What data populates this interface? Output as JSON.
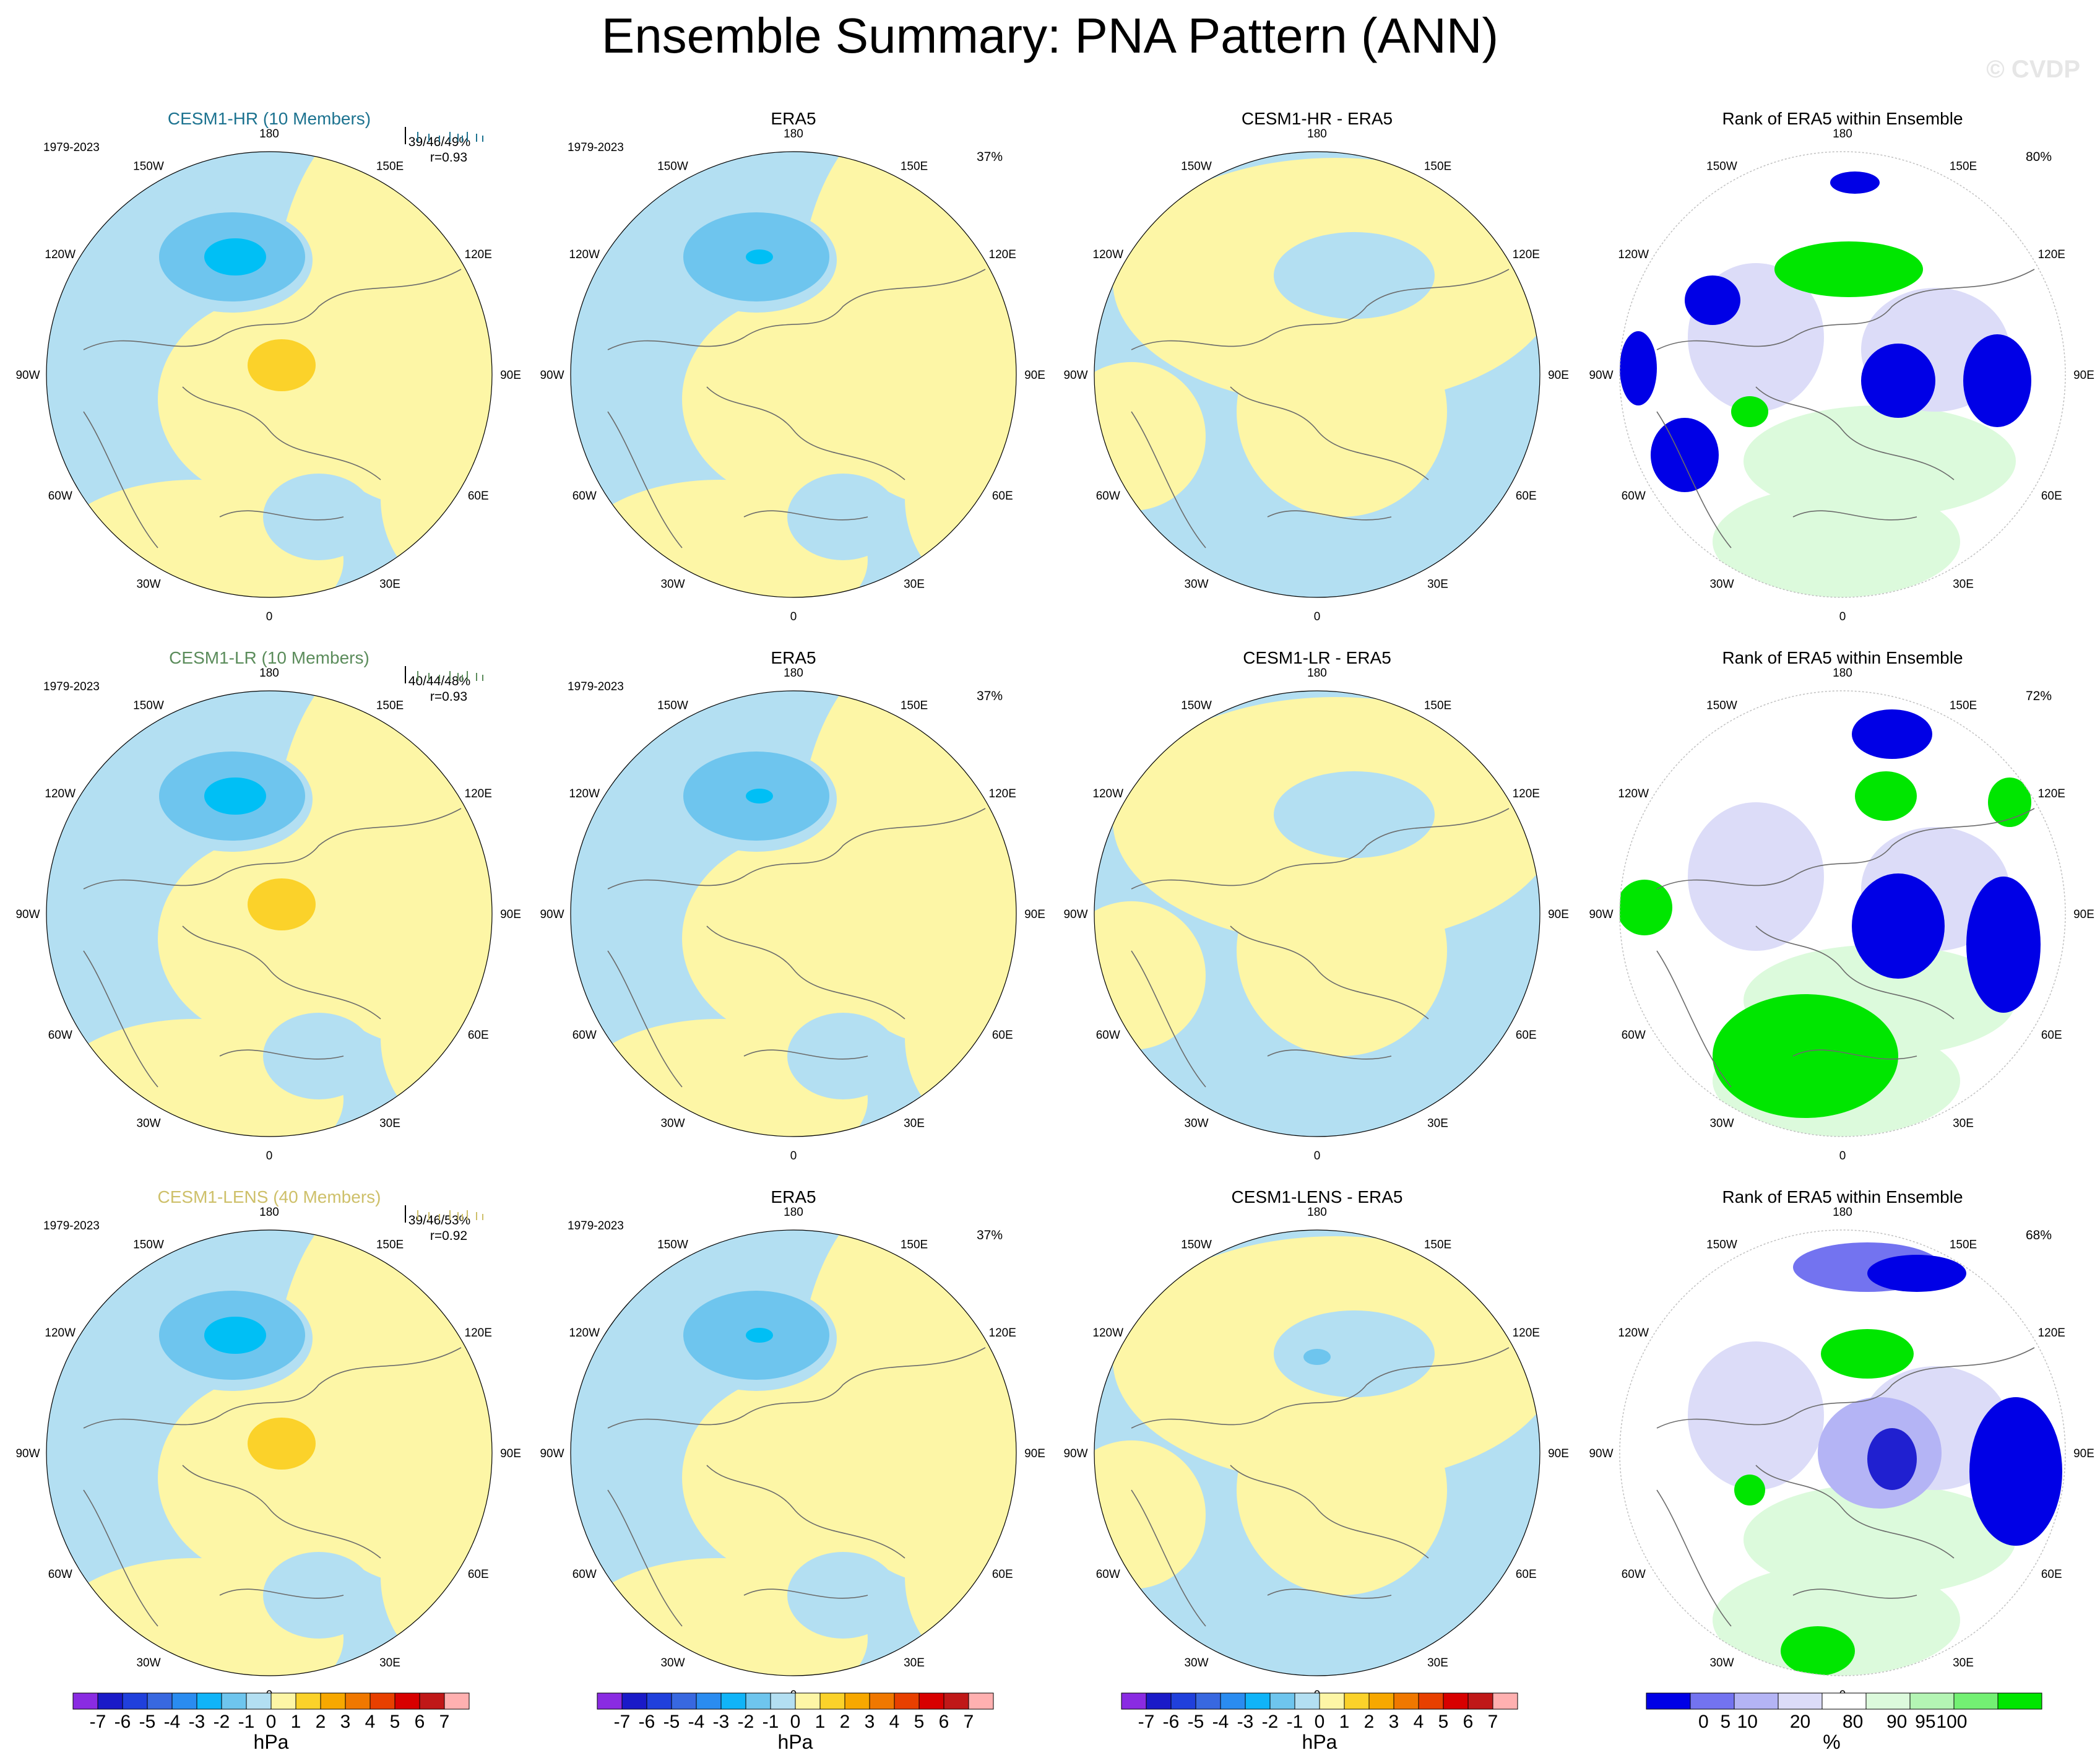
{
  "title": "Ensemble Summary: PNA Pattern (ANN)",
  "watermark": "© CVDP",
  "lon_labels": [
    "180",
    "150E",
    "120E",
    "90E",
    "60E",
    "30E",
    "0",
    "30W",
    "60W",
    "90W",
    "120W",
    "150W"
  ],
  "colors": {
    "light_blue": "#b3dff2",
    "mid_blue": "#6ec5ee",
    "deep_blue": "#00bff5",
    "light_yellow": "#fdf6a6",
    "gold": "#fbd22a",
    "ens_hr": "#1d7390",
    "ens_lr": "#5b8c5b",
    "ens_lens": "#cec06a"
  },
  "rows": [
    {
      "ensemble": {
        "title": "CESM1-HR (10 Members)",
        "years": "1979-2023",
        "stats1": "39/46/49%",
        "stats2": "r=0.93"
      },
      "era5": {
        "title": "ERA5",
        "years": "1979-2023",
        "pct": "37%"
      },
      "diff": {
        "title": "CESM1-HR - ERA5"
      },
      "rank": {
        "title": "Rank of ERA5 within Ensemble",
        "pct": "80%"
      }
    },
    {
      "ensemble": {
        "title": "CESM1-LR (10 Members)",
        "years": "1979-2023",
        "stats1": "40/44/48%",
        "stats2": "r=0.93"
      },
      "era5": {
        "title": "ERA5",
        "years": "1979-2023",
        "pct": "37%"
      },
      "diff": {
        "title": "CESM1-LR - ERA5"
      },
      "rank": {
        "title": "Rank of ERA5 within Ensemble",
        "pct": "72%"
      }
    },
    {
      "ensemble": {
        "title": "CESM1-LENS (40 Members)",
        "years": "1979-2023",
        "stats1": "39/46/53%",
        "stats2": "r=0.92"
      },
      "era5": {
        "title": "ERA5",
        "years": "1979-2023",
        "pct": "37%"
      },
      "diff": {
        "title": "CESM1-LENS - ERA5"
      },
      "rank": {
        "title": "Rank of ERA5 within Ensemble",
        "pct": "68%"
      }
    }
  ],
  "colorbar_hpa": {
    "labels": [
      "-7",
      "-6",
      "-5",
      "-4",
      "-3",
      "-2",
      "-1",
      "0",
      "1",
      "2",
      "3",
      "4",
      "5",
      "6",
      "7"
    ],
    "colors": [
      "#8a2be2",
      "#1a1ac8",
      "#2040dc",
      "#3868e0",
      "#2a8cf0",
      "#10b4f8",
      "#6ec5ee",
      "#b3dff2",
      "#fdf6a6",
      "#fbd22a",
      "#f7a800",
      "#f07800",
      "#e84000",
      "#d80000",
      "#c01818",
      "#ffb0b0"
    ],
    "unit": "hPa"
  },
  "colorbar_pct": {
    "labels": [
      "0",
      "5",
      "10",
      "20",
      "80",
      "90",
      "95",
      "100"
    ],
    "colors": [
      "#0000e6",
      "#7373f0",
      "#b4b4f5",
      "#dcdcf8",
      "#ffffff",
      "#dcfadc",
      "#b4f5b4",
      "#73f073",
      "#00e600"
    ],
    "unit": "%"
  }
}
